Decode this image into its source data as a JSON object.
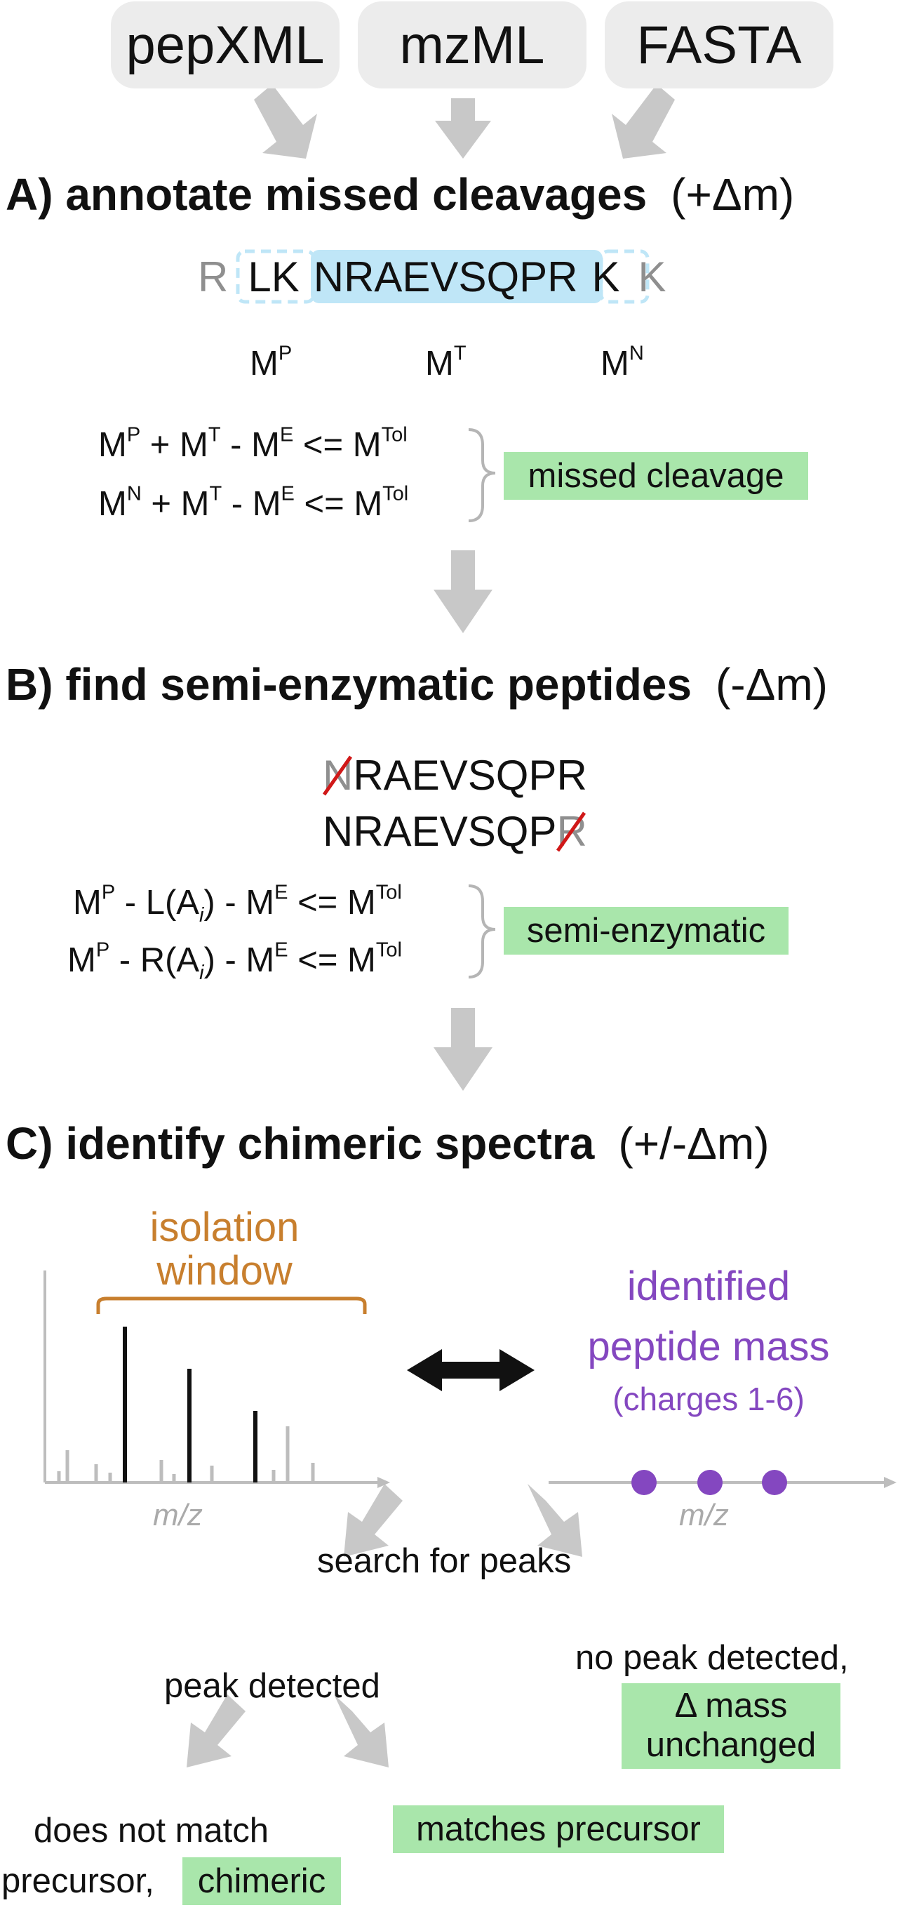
{
  "inputs": [
    "pepXML",
    "mzML",
    "FASTA"
  ],
  "colors": {
    "pill": "#ececec",
    "arrow": "#c8c8c8",
    "highlight": "#a9e6ab",
    "tryptic": "#bfe6f7",
    "isolation": "#c87f2e",
    "identified": "#8447c0",
    "strike": "#d01818",
    "axis": "#bdbdbd"
  },
  "section_a": {
    "title": "A) annotate missed cleavages",
    "delta": "(+Δm)",
    "sequence": {
      "left_residue": "R",
      "prev_part": "LK",
      "tryptic": "NRAEVSQPR",
      "next_part": "K",
      "right_residue": "K"
    },
    "mass_labels": {
      "prev": {
        "base": "M",
        "sup": "P"
      },
      "tryptic": {
        "base": "M",
        "sup": "T"
      },
      "next": {
        "base": "M",
        "sup": "N"
      }
    },
    "equations": [
      {
        "a": "M",
        "a_sup": "P",
        "op1": " + M",
        "op1_sup": "T",
        "op2": " - M",
        "op2_sup": "E",
        "op3": " <= M",
        "op3_sup": "Tol"
      },
      {
        "a": "M",
        "a_sup": "N",
        "op1": " + M",
        "op1_sup": "T",
        "op2": " - M",
        "op2_sup": "E",
        "op3": " <= M",
        "op3_sup": "Tol"
      }
    ],
    "result": "missed cleavage"
  },
  "section_b": {
    "title": "B) find semi-enzymatic peptides",
    "delta": "(-Δm)",
    "peptide1": {
      "removed": "N",
      "rest": "RAEVSQPR"
    },
    "peptide2": {
      "rest": "NRAEVSQP",
      "removed": "R"
    },
    "equations": [
      {
        "a": "M",
        "a_sup": "P",
        "mid": " - L(A",
        "sub": "i",
        "mid2": ") - M",
        "mid2_sup": "E",
        "end": " <= M",
        "end_sup": "Tol"
      },
      {
        "a": "M",
        "a_sup": "P",
        "mid": " - R(A",
        "sub": "i",
        "mid2": ") - M",
        "mid2_sup": "E",
        "end": " <= M",
        "end_sup": "Tol"
      }
    ],
    "result": "semi-enzymatic"
  },
  "section_c": {
    "title": "C) identify chimeric spectra",
    "delta": "(+/-Δm)",
    "isolation_window": [
      "isolation",
      "window"
    ],
    "identified_mass": [
      "identified",
      "peptide mass"
    ],
    "charges": "(charges 1-6)",
    "axis_label_left": "m/z",
    "axis_label_right": "m/z",
    "search": "search for peaks",
    "peak_detected": "peak detected",
    "no_peak": "no peak detected,",
    "mass_unchanged": [
      "Δ mass",
      "unchanged"
    ],
    "not_match": [
      "does not match",
      "precursor,"
    ],
    "chimeric": "chimeric",
    "matches": "matches precursor"
  }
}
